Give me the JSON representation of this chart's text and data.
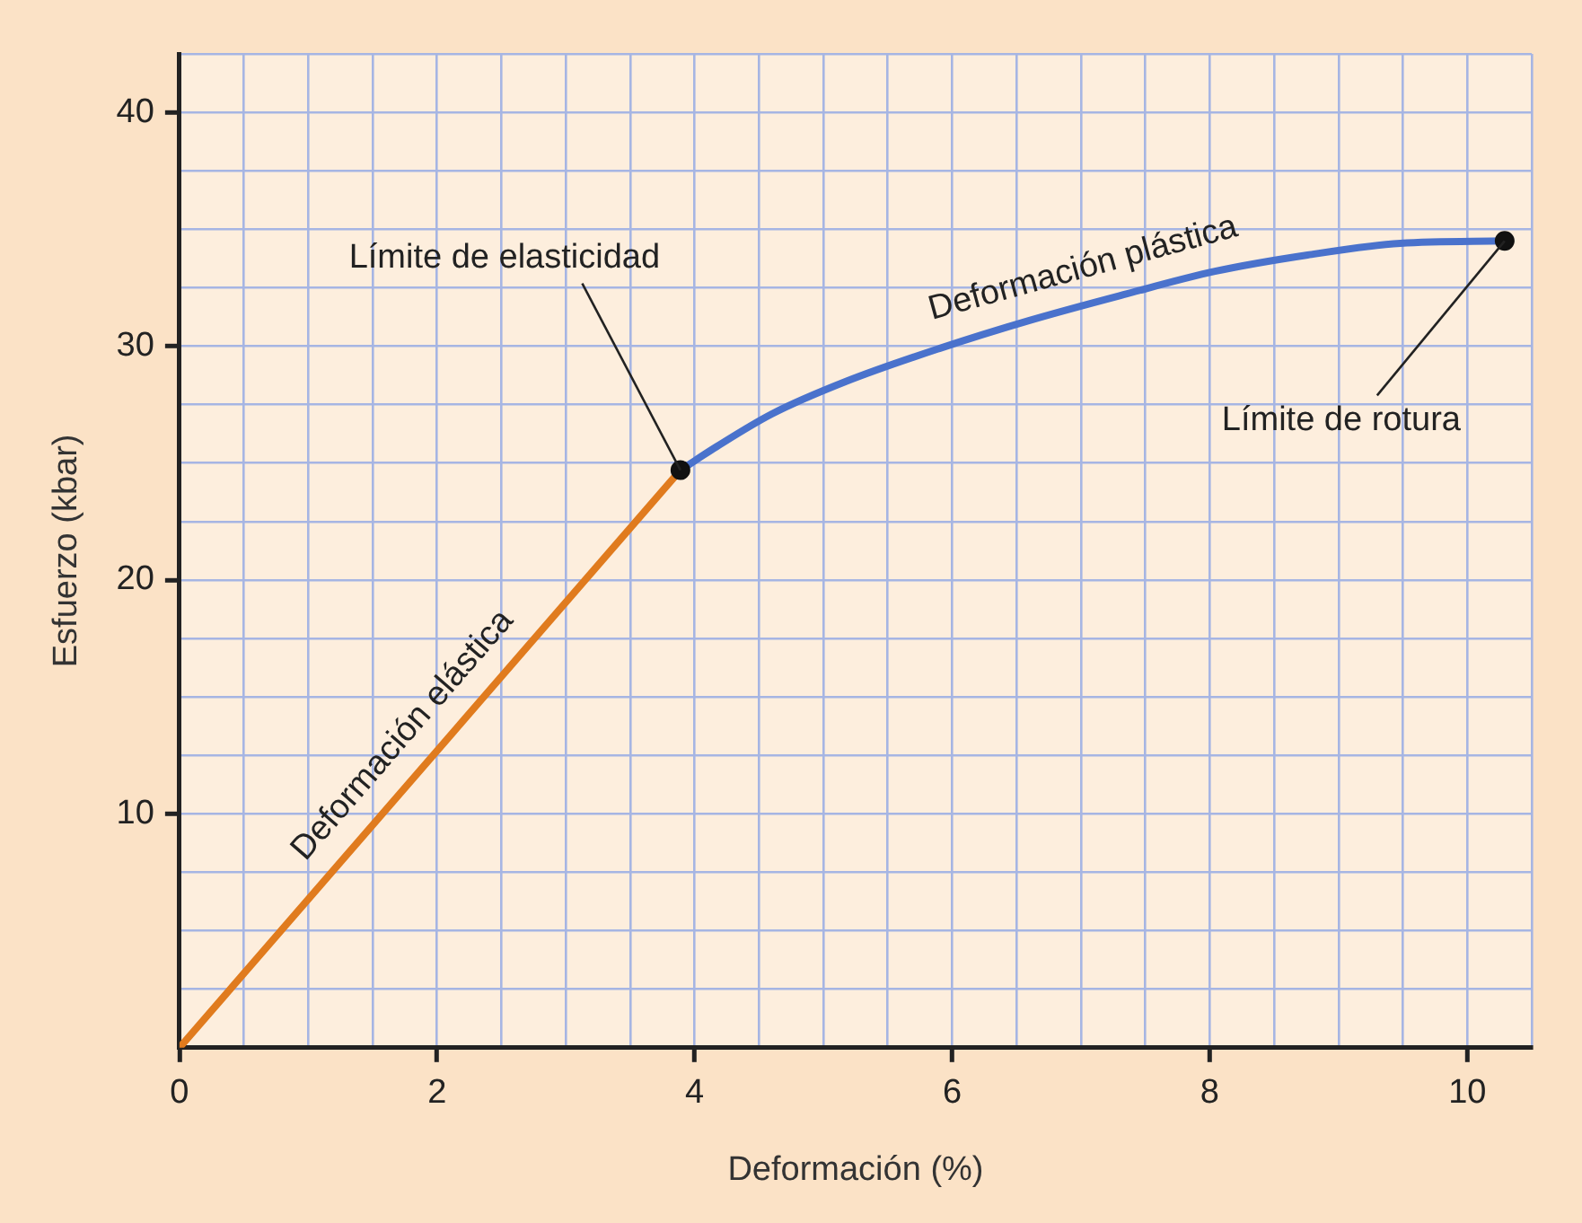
{
  "chart_data": {
    "type": "line",
    "xlabel": "Deformación (%)",
    "ylabel": "Esfuerzo (kbar)",
    "xlim": [
      0,
      10.5
    ],
    "ylim": [
      0,
      42.5
    ],
    "xticks": [
      0,
      {
        "value": 0.5,
        "label": null
      },
      {
        "value": 1,
        "label": null
      },
      {
        "value": 1.5,
        "label": null
      },
      2,
      {
        "value": 2.5,
        "label": null
      },
      {
        "value": 3,
        "label": null
      },
      {
        "value": 3.5,
        "label": null
      },
      4,
      {
        "value": 4.5,
        "label": null
      },
      {
        "value": 5,
        "label": null
      },
      {
        "value": 5.5,
        "label": null
      },
      6,
      {
        "value": 6.5,
        "label": null
      },
      {
        "value": 7,
        "label": null
      },
      {
        "value": 7.5,
        "label": null
      },
      8,
      {
        "value": 8.5,
        "label": null
      },
      {
        "value": 9,
        "label": null
      },
      {
        "value": 9.5,
        "label": null
      },
      10,
      {
        "value": 10.5,
        "label": null
      }
    ],
    "yticks": [
      {
        "value": 2.5,
        "label": null
      },
      {
        "value": 5,
        "label": null
      },
      {
        "value": 7.5,
        "label": null
      },
      10,
      {
        "value": 12.5,
        "label": null
      },
      {
        "value": 15,
        "label": null
      },
      {
        "value": 17.5,
        "label": null
      },
      20,
      {
        "value": 22.5,
        "label": null
      },
      {
        "value": 25,
        "label": null
      },
      {
        "value": 27.5,
        "label": null
      },
      30,
      {
        "value": 32.5,
        "label": null
      },
      {
        "value": 35,
        "label": null
      },
      {
        "value": 37.5,
        "label": null
      },
      40,
      {
        "value": 42.5,
        "label": null
      }
    ],
    "grid": true,
    "legend": false,
    "series": [
      {
        "name": "Deformación elástica",
        "color": "#e07b1e",
        "x": [
          0,
          3.89
        ],
        "values": [
          0,
          24.7
        ]
      },
      {
        "name": "Deformación plástica",
        "color": "#4a72cc",
        "x": [
          3.89,
          4.17,
          4.6,
          5.18,
          5.9,
          6.6,
          7.33,
          8.04,
          8.76,
          9.48,
          10.29
        ],
        "values": [
          24.7,
          25.7,
          27.1,
          28.5,
          29.9,
          31.1,
          32.2,
          33.2,
          33.9,
          34.4,
          34.5
        ]
      },
      {
        "type": "scatter",
        "marker": "circle",
        "color": "#111111",
        "x": [
          3.89,
          10.29
        ],
        "values": [
          24.7,
          34.5
        ]
      }
    ],
    "annotations": [
      {
        "text": "Límite de elasticidad",
        "x": 3.89,
        "y": 24.7
      },
      {
        "text": "Límite de rotura",
        "x": 10.29,
        "y": 34.5
      }
    ]
  }
}
